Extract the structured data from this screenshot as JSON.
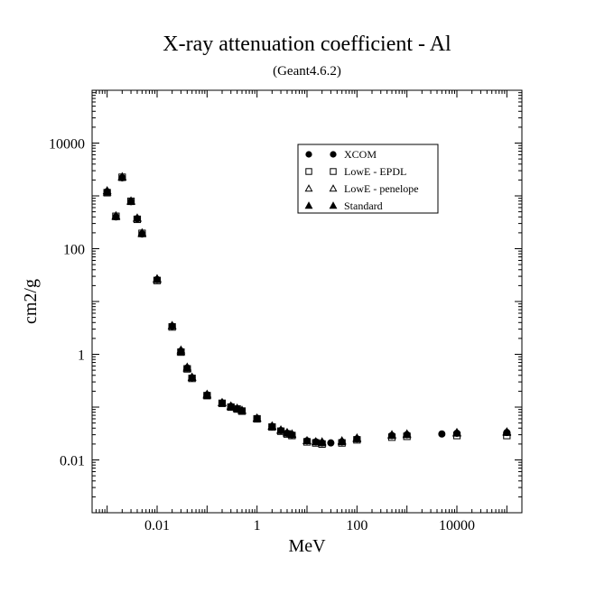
{
  "chart_data": {
    "type": "scatter",
    "title": "X-ray attenuation coefficient - Al",
    "subtitle": "(Geant4.6.2)",
    "xlabel": "MeV",
    "ylabel": "cm2/g",
    "xscale": "log",
    "yscale": "log",
    "xlim": [
      0.0005,
      200000
    ],
    "ylim": [
      0.001,
      100000
    ],
    "x_ticks": [
      {
        "value": 0.01,
        "label": "0.01"
      },
      {
        "value": 1,
        "label": "1"
      },
      {
        "value": 100,
        "label": "100"
      },
      {
        "value": 10000,
        "label": "10000"
      }
    ],
    "y_ticks": [
      {
        "value": 0.01,
        "label": "0.01"
      },
      {
        "value": 1,
        "label": "1"
      },
      {
        "value": 100,
        "label": "100"
      },
      {
        "value": 10000,
        "label": "10000"
      }
    ],
    "grid": false,
    "legend_position": "top-right",
    "series": [
      {
        "name": "XCOM",
        "marker": "circle",
        "color": "#000000",
        "x": [
          0.001,
          0.0015,
          0.002,
          0.003,
          0.004,
          0.005,
          0.01,
          0.02,
          0.03,
          0.04,
          0.05,
          0.1,
          0.2,
          0.3,
          0.4,
          0.5,
          1,
          2,
          3,
          4,
          5,
          10,
          15,
          20,
          30,
          50,
          100,
          500,
          1000,
          5000,
          10000,
          100000
        ],
        "y": [
          1200,
          400,
          2200,
          780,
          370,
          190,
          26,
          3.4,
          1.15,
          0.55,
          0.36,
          0.17,
          0.12,
          0.103,
          0.093,
          0.085,
          0.061,
          0.043,
          0.036,
          0.032,
          0.03,
          0.023,
          0.022,
          0.021,
          0.021,
          0.022,
          0.025,
          0.029,
          0.03,
          0.031,
          0.032,
          0.033
        ]
      },
      {
        "name": "LowE - EPDL",
        "marker": "square",
        "color": "#000000",
        "x": [
          0.001,
          0.0015,
          0.002,
          0.003,
          0.004,
          0.005,
          0.01,
          0.02,
          0.03,
          0.04,
          0.05,
          0.1,
          0.2,
          0.3,
          0.4,
          0.5,
          1,
          2,
          3,
          4,
          5,
          10,
          15,
          20,
          50,
          100,
          500,
          1000,
          10000,
          100000
        ],
        "y": [
          1150,
          410,
          2250,
          790,
          360,
          195,
          25,
          3.3,
          1.1,
          0.53,
          0.35,
          0.165,
          0.118,
          0.1,
          0.092,
          0.084,
          0.06,
          0.042,
          0.035,
          0.031,
          0.029,
          0.022,
          0.021,
          0.02,
          0.021,
          0.024,
          0.027,
          0.028,
          0.029,
          0.029
        ]
      },
      {
        "name": "LowE - penelope",
        "marker": "triangle-open",
        "color": "#000000",
        "x": [
          0.001,
          0.0015,
          0.002,
          0.003,
          0.004,
          0.005,
          0.01,
          0.02,
          0.03,
          0.04,
          0.05,
          0.1,
          0.2,
          0.3,
          0.4,
          0.5,
          1,
          2,
          3,
          4,
          5,
          10,
          15,
          20,
          50,
          100,
          500,
          1000,
          10000,
          100000
        ],
        "y": [
          1250,
          420,
          2300,
          800,
          380,
          200,
          27,
          3.5,
          1.2,
          0.57,
          0.37,
          0.175,
          0.122,
          0.105,
          0.095,
          0.087,
          0.062,
          0.044,
          0.037,
          0.033,
          0.031,
          0.023,
          0.022,
          0.022,
          0.023,
          0.026,
          0.03,
          0.031,
          0.033,
          0.034
        ]
      },
      {
        "name": "Standard",
        "marker": "triangle-filled",
        "color": "#000000",
        "x": [
          0.001,
          0.0015,
          0.002,
          0.003,
          0.004,
          0.005,
          0.01,
          0.02,
          0.03,
          0.04,
          0.05,
          0.1,
          0.2,
          0.3,
          0.4,
          0.5,
          1,
          2,
          3,
          4,
          5,
          10,
          15,
          20,
          50,
          100,
          500,
          1000,
          10000,
          100000
        ],
        "y": [
          1180,
          405,
          2270,
          785,
          375,
          192,
          26,
          3.45,
          1.12,
          0.54,
          0.36,
          0.168,
          0.12,
          0.102,
          0.094,
          0.086,
          0.061,
          0.043,
          0.036,
          0.032,
          0.03,
          0.023,
          0.022,
          0.021,
          0.022,
          0.025,
          0.029,
          0.03,
          0.032,
          0.033
        ]
      }
    ]
  }
}
